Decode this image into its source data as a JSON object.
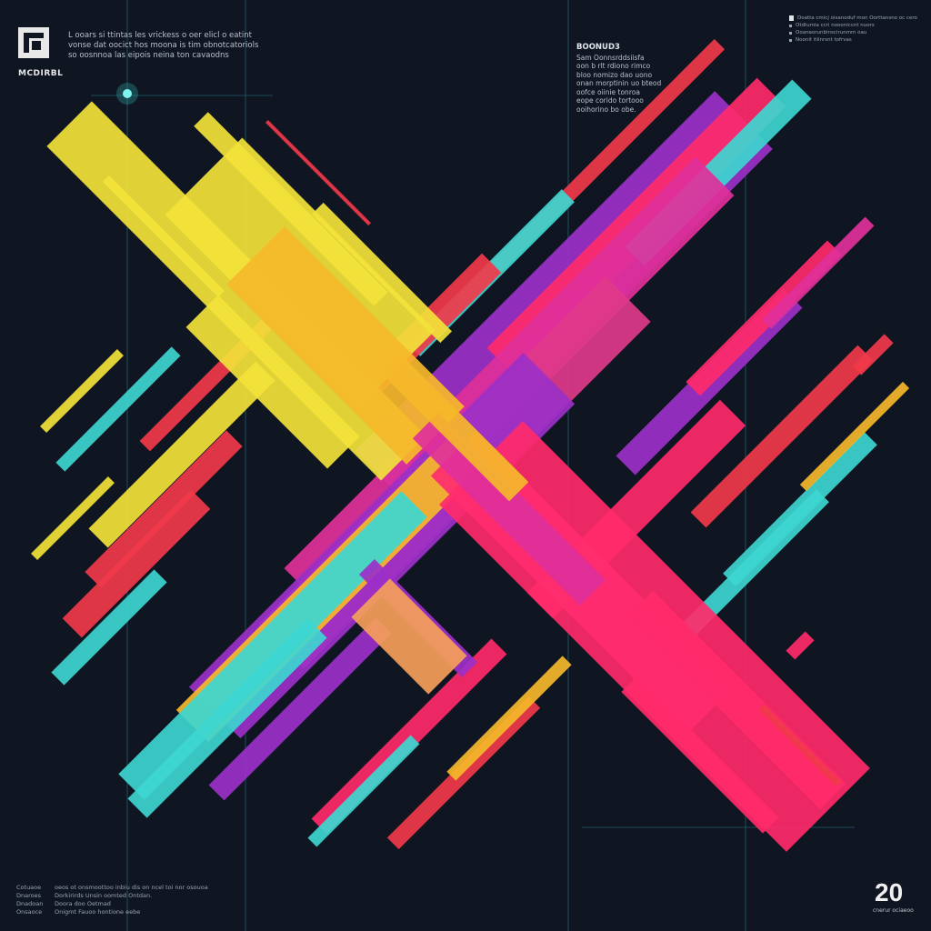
{
  "header": {
    "logo_label": "MCDIRBL",
    "intro_lines": [
      "L ooars si ttintas les vrickess o oer elicl o eatint",
      "vonse dat oocict hos moona is tim obnotcatoriols",
      "so oosnnoa las eipois neina ton cavaodns"
    ]
  },
  "side_block": {
    "title": "BOONUD3",
    "lines": [
      "Sam Oonnsrddsiisfa",
      "oon b rlt rdiono rimco",
      "bloo nomizo dao uono",
      "onan morptinin uo bteod",
      "oofce oiinie tonroa",
      "eope corido tortooo",
      "ooihorino bo obe."
    ]
  },
  "legend": {
    "items": [
      "Doatta cmicj oisanoduf mon Oorttansno oc cero",
      "Otdtumia ccri noooniccnt nuors",
      "Ooanaorunbinscirunmm oau",
      "Noonit itiinrsnt tofrvas"
    ]
  },
  "footer": {
    "rows": [
      {
        "key": "Cotuaoe",
        "value": "oeos ot onsmoottoo inbiu dis on ncel toi nor osouoa"
      },
      {
        "key": "Dnaroes",
        "value": "Dorkirirds Unsin oomted Ontdan."
      },
      {
        "key": "Dnadoan",
        "value": "Doora doo Oetmad"
      },
      {
        "key": "Onsaoce",
        "value": "Onigmt Fauoo hontione eebe"
      }
    ]
  },
  "corner": {
    "number": "20",
    "caption": "cnerur ociaeoo"
  },
  "colors": {
    "background": "#0f1622",
    "yellow": "#f2e23a",
    "gold": "#f5b82a",
    "pink": "#ff2a6a",
    "magenta": "#e0309a",
    "purple": "#9b30c8",
    "cyan": "#3dd6d0",
    "red": "#f03a4a",
    "guide_line": "#2a8a9a"
  }
}
